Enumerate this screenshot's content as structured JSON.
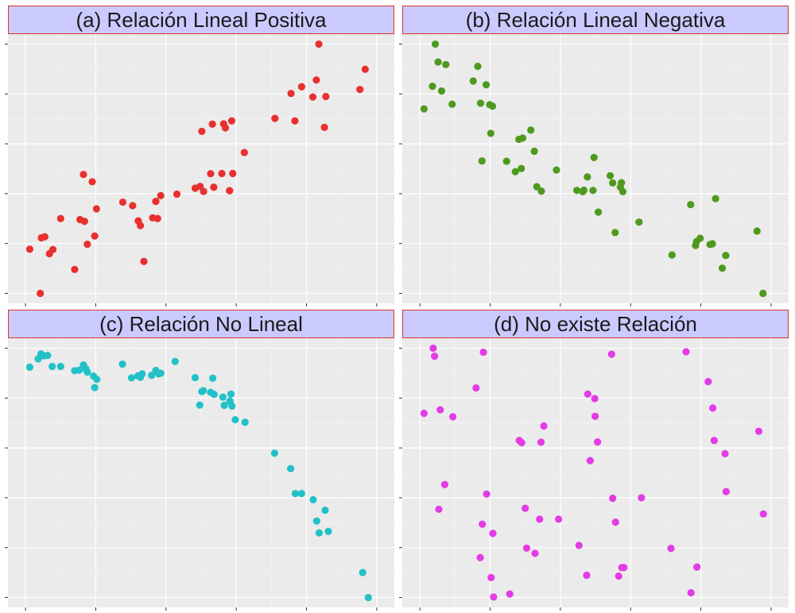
{
  "colors": {
    "panel_bg": "#ebebeb",
    "grid_major": "#ffffff",
    "grid_minor": "#f5f5f5",
    "strip_bg": "#cacaff",
    "strip_border": "#e03030",
    "tick": "#333333"
  },
  "chart_data": [
    {
      "type": "scatter",
      "title": "(a) Relación Lineal Positiva",
      "color": "#e8302f",
      "xlim": [
        -0.05,
        1.05
      ],
      "ylim": [
        -0.04,
        1.04
      ],
      "grid": true,
      "points": [
        [
          0.012,
          0.177
        ],
        [
          0.042,
          0.0
        ],
        [
          0.045,
          0.223
        ],
        [
          0.055,
          0.227
        ],
        [
          0.068,
          0.159
        ],
        [
          0.078,
          0.176
        ],
        [
          0.1,
          0.3
        ],
        [
          0.14,
          0.096
        ],
        [
          0.155,
          0.296
        ],
        [
          0.165,
          0.477
        ],
        [
          0.168,
          0.289
        ],
        [
          0.176,
          0.197
        ],
        [
          0.19,
          0.448
        ],
        [
          0.197,
          0.23
        ],
        [
          0.202,
          0.339
        ],
        [
          0.277,
          0.366
        ],
        [
          0.305,
          0.352
        ],
        [
          0.321,
          0.291
        ],
        [
          0.327,
          0.272
        ],
        [
          0.337,
          0.128
        ],
        [
          0.362,
          0.303
        ],
        [
          0.371,
          0.369
        ],
        [
          0.376,
          0.3
        ],
        [
          0.385,
          0.392
        ],
        [
          0.431,
          0.398
        ],
        [
          0.483,
          0.422
        ],
        [
          0.497,
          0.429
        ],
        [
          0.502,
          0.65
        ],
        [
          0.507,
          0.409
        ],
        [
          0.527,
          0.48
        ],
        [
          0.532,
          0.679
        ],
        [
          0.536,
          0.426
        ],
        [
          0.559,
          0.481
        ],
        [
          0.564,
          0.68
        ],
        [
          0.569,
          0.664
        ],
        [
          0.581,
          0.412
        ],
        [
          0.587,
          0.692
        ],
        [
          0.59,
          0.481
        ],
        [
          0.623,
          0.565
        ],
        [
          0.71,
          0.702
        ],
        [
          0.756,
          0.802
        ],
        [
          0.767,
          0.692
        ],
        [
          0.786,
          0.829
        ],
        [
          0.818,
          0.788
        ],
        [
          0.828,
          0.856
        ],
        [
          0.835,
          1.0
        ],
        [
          0.851,
          0.666
        ],
        [
          0.855,
          0.79
        ],
        [
          0.952,
          0.818
        ],
        [
          0.967,
          0.899
        ]
      ]
    },
    {
      "type": "scatter",
      "title": "(b) Relación Lineal Negativa",
      "color": "#4e9a1e",
      "xlim": [
        -0.05,
        1.05
      ],
      "ylim": [
        -0.04,
        1.04
      ],
      "grid": true,
      "points": [
        [
          0.012,
          0.74
        ],
        [
          0.036,
          0.831
        ],
        [
          0.044,
          1.0
        ],
        [
          0.052,
          0.928
        ],
        [
          0.062,
          0.812
        ],
        [
          0.074,
          0.918
        ],
        [
          0.092,
          0.759
        ],
        [
          0.152,
          0.852
        ],
        [
          0.165,
          0.911
        ],
        [
          0.173,
          0.763
        ],
        [
          0.177,
          0.531
        ],
        [
          0.189,
          0.837
        ],
        [
          0.199,
          0.757
        ],
        [
          0.202,
          0.642
        ],
        [
          0.207,
          0.751
        ],
        [
          0.247,
          0.53
        ],
        [
          0.272,
          0.488
        ],
        [
          0.282,
          0.618
        ],
        [
          0.289,
          0.501
        ],
        [
          0.293,
          0.623
        ],
        [
          0.316,
          0.655
        ],
        [
          0.326,
          0.57
        ],
        [
          0.333,
          0.428
        ],
        [
          0.346,
          0.41
        ],
        [
          0.389,
          0.495
        ],
        [
          0.447,
          0.413
        ],
        [
          0.464,
          0.408
        ],
        [
          0.467,
          0.414
        ],
        [
          0.477,
          0.467
        ],
        [
          0.493,
          0.413
        ],
        [
          0.496,
          0.545
        ],
        [
          0.508,
          0.326
        ],
        [
          0.542,
          0.472
        ],
        [
          0.549,
          0.443
        ],
        [
          0.556,
          0.244
        ],
        [
          0.571,
          0.426
        ],
        [
          0.574,
          0.444
        ],
        [
          0.578,
          0.408
        ],
        [
          0.624,
          0.286
        ],
        [
          0.718,
          0.154
        ],
        [
          0.771,
          0.356
        ],
        [
          0.785,
          0.192
        ],
        [
          0.788,
          0.208
        ],
        [
          0.798,
          0.221
        ],
        [
          0.826,
          0.196
        ],
        [
          0.833,
          0.199
        ],
        [
          0.842,
          0.38
        ],
        [
          0.861,
          0.101
        ],
        [
          0.871,
          0.152
        ],
        [
          0.96,
          0.25
        ],
        [
          0.977,
          0.0
        ]
      ]
    },
    {
      "type": "scatter",
      "title": "(c) Relación No Lineal",
      "color": "#22c1c8",
      "xlim": [
        -0.05,
        1.05
      ],
      "ylim": [
        -0.04,
        1.04
      ],
      "grid": true,
      "points": [
        [
          0.012,
          0.924
        ],
        [
          0.036,
          0.957
        ],
        [
          0.044,
          0.977
        ],
        [
          0.052,
          0.97
        ],
        [
          0.063,
          0.971
        ],
        [
          0.076,
          0.927
        ],
        [
          0.1,
          0.927
        ],
        [
          0.14,
          0.91
        ],
        [
          0.153,
          0.912
        ],
        [
          0.165,
          0.933
        ],
        [
          0.172,
          0.917
        ],
        [
          0.176,
          0.904
        ],
        [
          0.194,
          0.888
        ],
        [
          0.197,
          0.842
        ],
        [
          0.203,
          0.875
        ],
        [
          0.276,
          0.936
        ],
        [
          0.302,
          0.881
        ],
        [
          0.32,
          0.889
        ],
        [
          0.327,
          0.883
        ],
        [
          0.332,
          0.897
        ],
        [
          0.359,
          0.891
        ],
        [
          0.371,
          0.911
        ],
        [
          0.379,
          0.897
        ],
        [
          0.385,
          0.9
        ],
        [
          0.426,
          0.947
        ],
        [
          0.483,
          0.882
        ],
        [
          0.496,
          0.772
        ],
        [
          0.502,
          0.826
        ],
        [
          0.506,
          0.83
        ],
        [
          0.527,
          0.823
        ],
        [
          0.533,
          0.88
        ],
        [
          0.537,
          0.815
        ],
        [
          0.562,
          0.804
        ],
        [
          0.566,
          0.771
        ],
        [
          0.582,
          0.788
        ],
        [
          0.585,
          0.816
        ],
        [
          0.588,
          0.768
        ],
        [
          0.597,
          0.713
        ],
        [
          0.625,
          0.703
        ],
        [
          0.709,
          0.579
        ],
        [
          0.755,
          0.517
        ],
        [
          0.768,
          0.417
        ],
        [
          0.786,
          0.417
        ],
        [
          0.819,
          0.392
        ],
        [
          0.829,
          0.307
        ],
        [
          0.836,
          0.259
        ],
        [
          0.853,
          0.35
        ],
        [
          0.862,
          0.265
        ],
        [
          0.96,
          0.1
        ],
        [
          0.976,
          0.0
        ]
      ]
    },
    {
      "type": "scatter",
      "title": "(d) No existe Relación",
      "color": "#e33be6",
      "xlim": [
        -0.05,
        1.05
      ],
      "ylim": [
        -0.04,
        1.04
      ],
      "grid": true,
      "points": [
        [
          0.012,
          0.739
        ],
        [
          0.038,
          1.0
        ],
        [
          0.042,
          0.968
        ],
        [
          0.054,
          0.354
        ],
        [
          0.058,
          0.753
        ],
        [
          0.071,
          0.453
        ],
        [
          0.094,
          0.725
        ],
        [
          0.16,
          0.841
        ],
        [
          0.172,
          0.16
        ],
        [
          0.178,
          0.294
        ],
        [
          0.181,
          0.984
        ],
        [
          0.19,
          0.415
        ],
        [
          0.203,
          0.08
        ],
        [
          0.208,
          0.257
        ],
        [
          0.21,
          0.002
        ],
        [
          0.256,
          0.014
        ],
        [
          0.283,
          0.63
        ],
        [
          0.29,
          0.621
        ],
        [
          0.3,
          0.358
        ],
        [
          0.304,
          0.198
        ],
        [
          0.328,
          0.177
        ],
        [
          0.341,
          0.314
        ],
        [
          0.345,
          0.623
        ],
        [
          0.353,
          0.688
        ],
        [
          0.395,
          0.314
        ],
        [
          0.453,
          0.209
        ],
        [
          0.475,
          0.089
        ],
        [
          0.478,
          0.816
        ],
        [
          0.485,
          0.549
        ],
        [
          0.498,
          0.798
        ],
        [
          0.499,
          0.727
        ],
        [
          0.506,
          0.624
        ],
        [
          0.546,
          0.976
        ],
        [
          0.549,
          0.398
        ],
        [
          0.557,
          0.302
        ],
        [
          0.566,
          0.086
        ],
        [
          0.575,
          0.12
        ],
        [
          0.581,
          0.12
        ],
        [
          0.631,
          0.4
        ],
        [
          0.715,
          0.197
        ],
        [
          0.758,
          0.986
        ],
        [
          0.772,
          0.019
        ],
        [
          0.789,
          0.122
        ],
        [
          0.821,
          0.866
        ],
        [
          0.834,
          0.76
        ],
        [
          0.838,
          0.63
        ],
        [
          0.869,
          0.577
        ],
        [
          0.872,
          0.425
        ],
        [
          0.965,
          0.667
        ],
        [
          0.978,
          0.335
        ]
      ]
    }
  ]
}
